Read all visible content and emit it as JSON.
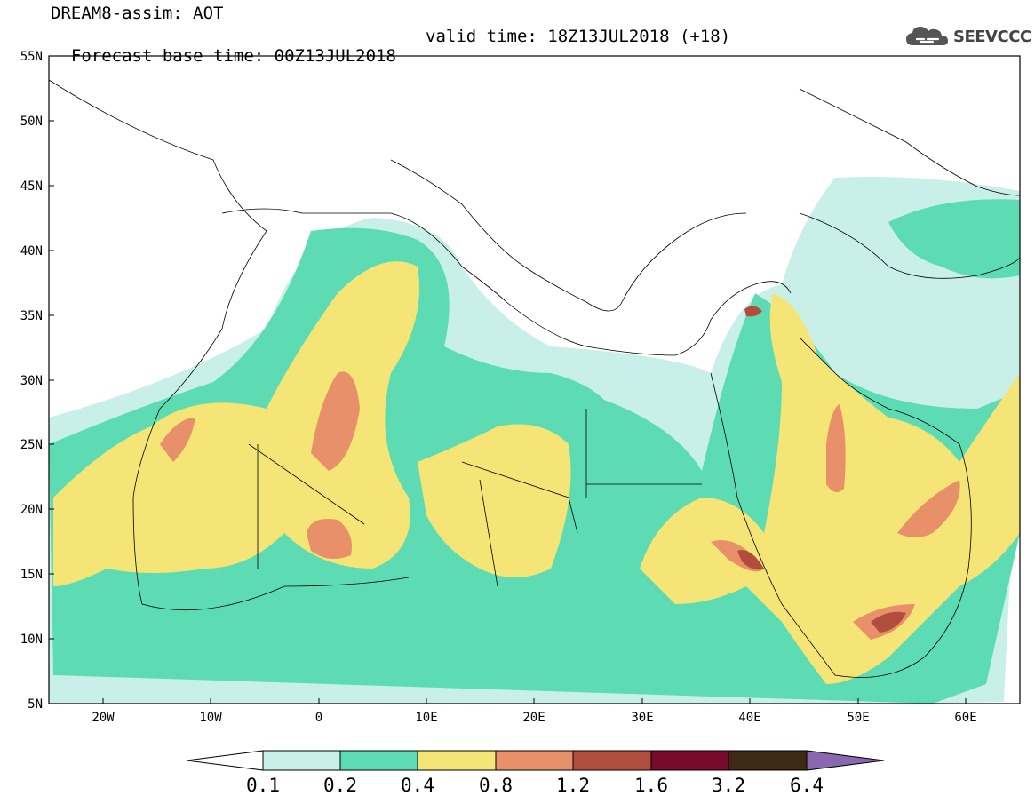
{
  "title": {
    "line1": "DREAM8-assim: AOT",
    "base_time": "Forecast base time: 00Z13JUL2018",
    "valid_time": "valid time: 18Z13JUL2018 (+18)"
  },
  "logo": {
    "text": "SEEVCCC",
    "icon": "cloud-icon"
  },
  "map": {
    "variable": "Aerosol Optical Thickness",
    "lon_range": [
      -25,
      65
    ],
    "lat_range": [
      5,
      55
    ],
    "lon_ticks": [
      "20W",
      "10W",
      "0",
      "10E",
      "20E",
      "30E",
      "40E",
      "50E",
      "60E"
    ],
    "lat_ticks": [
      "55N",
      "50N",
      "45N",
      "40N",
      "35N",
      "30N",
      "25N",
      "20N",
      "15N",
      "10N",
      "5N"
    ]
  },
  "colorbar": {
    "levels": [
      "0.1",
      "0.2",
      "0.4",
      "0.8",
      "1.2",
      "1.6",
      "3.2",
      "6.4"
    ],
    "colors": [
      "#c9f0e8",
      "#5ddcb4",
      "#f5e476",
      "#e8906a",
      "#b04d3d",
      "#7a0a2c",
      "#3e2a14",
      "#8a68b0"
    ],
    "under_color": "#ffffff"
  }
}
